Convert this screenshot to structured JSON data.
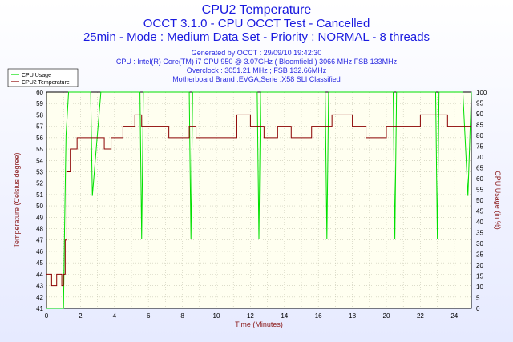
{
  "window": {
    "title": "CPU2 Temperature",
    "subtitle1": "OCCT 3.1.0 - CPU OCCT Test - Cancelled",
    "subtitle2": "25min - Mode : Medium Data Set - Priority : NORMAL - 8 threads",
    "info": [
      "Generated by OCCT : 29/09/10 19:42:30",
      "CPU : Intel(R) Core(TM) i7 CPU 950 @ 3.07GHz ( Bloomfield ) 3066 MHz FSB 133MHz",
      "Overclock : 3051.21 MHz ; FSB 132.66MHz",
      "Motherboard Brand :EVGA,Serie :X58 SLI Classified"
    ]
  },
  "colors": {
    "cpu_usage": "#00e000",
    "temperature": "#8b0000",
    "plot_bg": "#fffff0",
    "grid": "#c8c8b4",
    "title": "#1a1adf",
    "axis_label": "#8b1a1a"
  },
  "chart_data": {
    "type": "line",
    "xlabel": "Time (Minutes)",
    "ylabel_left": "Temperature (Celsius degree)",
    "ylabel_right": "CPU Usage (in %)",
    "xlim": [
      0,
      25
    ],
    "ylim_left": [
      41,
      60
    ],
    "ylim_right": [
      0,
      100
    ],
    "xticks": [
      0,
      2,
      4,
      6,
      8,
      10,
      12,
      14,
      16,
      18,
      20,
      22,
      24
    ],
    "yticks_left": [
      41,
      42,
      43,
      44,
      45,
      46,
      47,
      48,
      49,
      50,
      51,
      52,
      53,
      54,
      55,
      56,
      57,
      58,
      59,
      60
    ],
    "yticks_right": [
      0,
      5,
      10,
      15,
      20,
      25,
      30,
      35,
      40,
      45,
      50,
      55,
      60,
      65,
      70,
      75,
      80,
      85,
      90,
      95,
      100
    ],
    "grid": true,
    "legend_position": "top-left",
    "series": [
      {
        "name": "CPU Usage",
        "axis": "right",
        "x": [
          0.0,
          1.0,
          1.05,
          1.15,
          1.3,
          1.5,
          1.8,
          2.1,
          2.6,
          2.7,
          3.2,
          3.7,
          4.2,
          4.5,
          5.0,
          5.5,
          5.6,
          5.7,
          6.0,
          6.5,
          6.7,
          7.0,
          7.5,
          8.0,
          8.4,
          8.5,
          8.6,
          9.0,
          9.5,
          10.0,
          10.5,
          11.0,
          11.5,
          12.0,
          12.4,
          12.5,
          12.6,
          13.0,
          13.5,
          14.0,
          14.5,
          15.0,
          15.5,
          16.0,
          16.4,
          16.5,
          16.6,
          17.0,
          17.5,
          18.0,
          18.5,
          19.0,
          19.5,
          20.0,
          20.4,
          20.5,
          20.6,
          21.0,
          21.5,
          22.0,
          22.5,
          22.9,
          23.0,
          23.1,
          23.5,
          24.0,
          24.5,
          24.8,
          25.0
        ],
        "values": [
          0,
          0,
          30,
          80,
          100,
          100,
          100,
          100,
          100,
          52,
          100,
          100,
          100,
          100,
          100,
          100,
          32,
          100,
          100,
          100,
          100,
          100,
          100,
          100,
          100,
          32,
          100,
          100,
          100,
          100,
          100,
          100,
          100,
          100,
          100,
          32,
          100,
          100,
          100,
          100,
          100,
          100,
          100,
          100,
          100,
          32,
          100,
          100,
          100,
          100,
          100,
          100,
          100,
          100,
          100,
          32,
          100,
          100,
          100,
          100,
          100,
          100,
          32,
          100,
          100,
          100,
          100,
          52,
          100
        ]
      },
      {
        "name": "CPU2 Temperature",
        "axis": "left",
        "x": [
          0.0,
          0.3,
          0.6,
          0.9,
          1.0,
          1.1,
          1.2,
          1.4,
          1.6,
          1.8,
          2.0,
          2.3,
          2.6,
          3.0,
          3.4,
          3.8,
          4.2,
          4.5,
          4.8,
          5.2,
          5.6,
          6.0,
          6.4,
          6.8,
          7.2,
          7.6,
          8.0,
          8.4,
          8.8,
          9.2,
          9.6,
          10.0,
          10.4,
          10.8,
          11.2,
          11.6,
          12.0,
          12.4,
          12.8,
          13.2,
          13.6,
          14.0,
          14.4,
          14.8,
          15.2,
          15.6,
          16.0,
          16.4,
          16.8,
          17.2,
          17.6,
          18.0,
          18.4,
          18.8,
          19.2,
          19.6,
          20.0,
          20.4,
          20.8,
          21.2,
          21.6,
          22.0,
          22.4,
          22.8,
          23.2,
          23.6,
          24.0,
          24.4,
          24.8,
          25.0
        ],
        "values": [
          44,
          43,
          44,
          43,
          44,
          47,
          53,
          55,
          55,
          56,
          56,
          56,
          56,
          56,
          55,
          56,
          56,
          57,
          57,
          58,
          57,
          57,
          57,
          57,
          56,
          56,
          56,
          57,
          56,
          56,
          56,
          56,
          56,
          56,
          58,
          58,
          57,
          57,
          56,
          56,
          57,
          57,
          56,
          56,
          56,
          57,
          57,
          57,
          58,
          58,
          58,
          57,
          57,
          56,
          56,
          56,
          57,
          57,
          57,
          57,
          57,
          58,
          58,
          58,
          58,
          57,
          57,
          57,
          57,
          57
        ]
      }
    ]
  }
}
